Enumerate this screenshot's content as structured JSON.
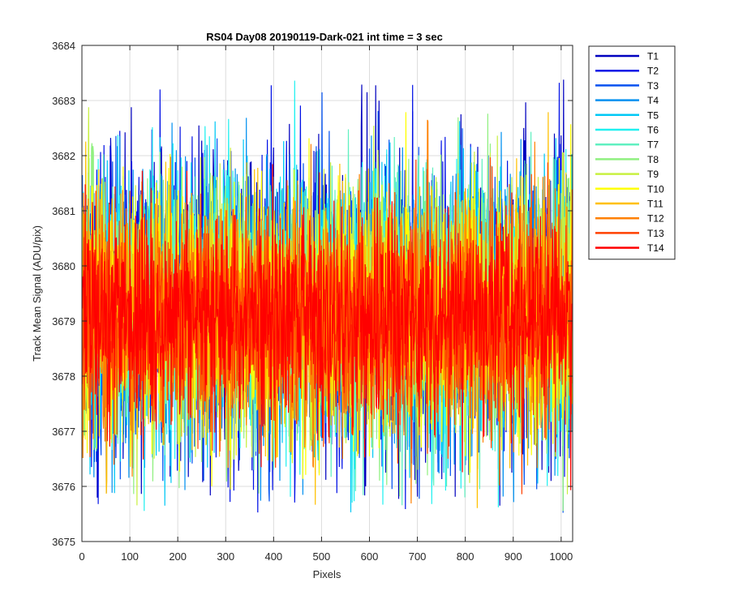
{
  "chart_data": {
    "type": "line",
    "title": "RS04 Day08 20190119-Dark-021 int time = 3 sec",
    "xlabel": "Pixels",
    "ylabel": "Track Mean Signal (ADU/pix)",
    "xlim": [
      0,
      1024
    ],
    "ylim": [
      3675,
      3684
    ],
    "xticks": [
      "0",
      "100",
      "200",
      "300",
      "400",
      "500",
      "600",
      "700",
      "800",
      "900",
      "1000"
    ],
    "yticks": [
      "3675",
      "3676",
      "3677",
      "3678",
      "3679",
      "3680",
      "3681",
      "3682",
      "3683",
      "3684"
    ],
    "grid": true,
    "legend_position": "outside-top-right",
    "x_points": 1024,
    "series": [
      {
        "name": "T1",
        "color": "#0000bf",
        "mean": 3679.2,
        "spread": 1.35,
        "seed": 11
      },
      {
        "name": "T2",
        "color": "#0010e6",
        "mean": 3679.2,
        "spread": 1.3,
        "seed": 23
      },
      {
        "name": "T3",
        "color": "#0050f0",
        "mean": 3679.2,
        "spread": 1.3,
        "seed": 37
      },
      {
        "name": "T4",
        "color": "#0090f0",
        "mean": 3679.2,
        "spread": 1.3,
        "seed": 41
      },
      {
        "name": "T5",
        "color": "#00c8f5",
        "mean": 3679.2,
        "spread": 1.25,
        "seed": 53
      },
      {
        "name": "T6",
        "color": "#20f0f0",
        "mean": 3679.2,
        "spread": 1.25,
        "seed": 67
      },
      {
        "name": "T7",
        "color": "#60f0c0",
        "mean": 3679.2,
        "spread": 1.2,
        "seed": 71
      },
      {
        "name": "T8",
        "color": "#90f080",
        "mean": 3679.2,
        "spread": 1.2,
        "seed": 83
      },
      {
        "name": "T9",
        "color": "#c8f040",
        "mean": 3679.2,
        "spread": 1.2,
        "seed": 97
      },
      {
        "name": "T10",
        "color": "#ffff00",
        "mean": 3679.1,
        "spread": 1.15,
        "seed": 101
      },
      {
        "name": "T11",
        "color": "#ffc000",
        "mean": 3679.1,
        "spread": 1.1,
        "seed": 113
      },
      {
        "name": "T12",
        "color": "#ff8000",
        "mean": 3679.0,
        "spread": 1.05,
        "seed": 127
      },
      {
        "name": "T13",
        "color": "#ff4000",
        "mean": 3679.0,
        "spread": 1.0,
        "seed": 131
      },
      {
        "name": "T14",
        "color": "#ff0000",
        "mean": 3679.0,
        "spread": 0.95,
        "seed": 149
      }
    ]
  }
}
